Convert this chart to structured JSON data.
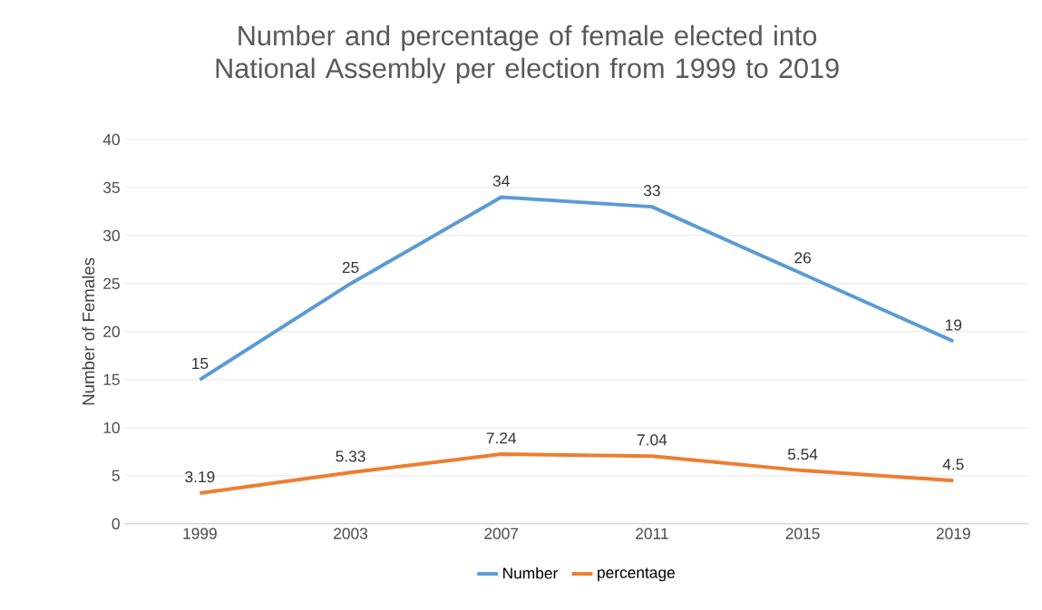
{
  "chart_data": {
    "type": "line",
    "title": "Number and percentage of female elected into National Assembly  per election from  1999 to 2019",
    "ylabel": "Number of Females",
    "categories": [
      "1999",
      "2003",
      "2007",
      "2011",
      "2015",
      "2019"
    ],
    "series": [
      {
        "name": "Number",
        "color": "#5b9bd5",
        "values": [
          15,
          25,
          34,
          33,
          26,
          19
        ]
      },
      {
        "name": "percentage",
        "color": "#ed7d31",
        "values": [
          3.19,
          5.33,
          7.24,
          7.04,
          5.54,
          4.5
        ]
      }
    ],
    "ylim": [
      0,
      40
    ],
    "yticks": [
      0,
      5,
      10,
      15,
      20,
      25,
      30,
      35,
      40
    ],
    "grid": "y",
    "legend": "bottom",
    "data_labels": true,
    "marker": "none",
    "line_style": "solid"
  }
}
